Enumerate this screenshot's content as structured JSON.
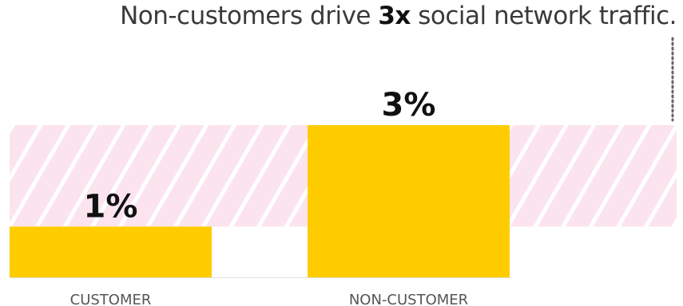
{
  "title": {
    "before": "Non-customers drive ",
    "emphasis": "3x",
    "after": " social network traffic."
  },
  "chart_data": {
    "type": "bar",
    "categories": [
      "CUSTOMER",
      "NON-CUSTOMER"
    ],
    "values": [
      1,
      3
    ],
    "value_labels": [
      "1%",
      "3%"
    ],
    "unit": "%",
    "ylim": [
      0,
      3
    ],
    "grid": false,
    "colors": {
      "bar": "#FFCC00",
      "band_background": "#FCE4EF",
      "band_stripe": "#FFFFFF",
      "value_label": "#111111",
      "category_label": "#555555",
      "baseline": "#DDDDDD",
      "dotted_leader": "#666666"
    }
  }
}
